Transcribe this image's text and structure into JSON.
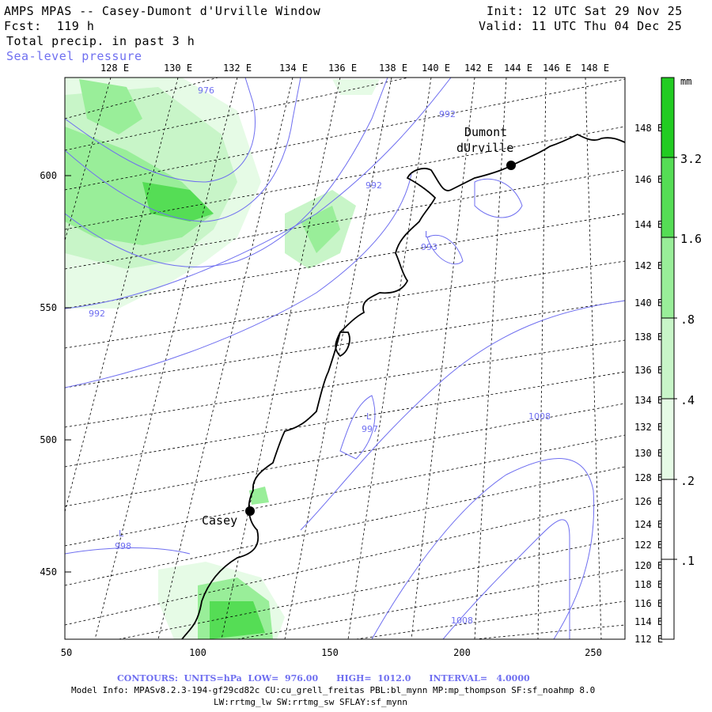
{
  "header": {
    "title": "AMPS MPAS -- Casey-Dumont d'Urville Window",
    "forecast": "Fcst:  119 h",
    "field": "Total precip. in past 3 h",
    "overlay": "Sea-level pressure",
    "init": "Init: 12 UTC Sat 29 Nov 25",
    "valid": "Valid: 11 UTC Thu 04 Dec 25"
  },
  "top_longitudes": [
    "128 E",
    "130 E",
    "132 E",
    "134 E",
    "136 E",
    "138 E",
    "140 E",
    "142 E",
    "144 E",
    "146 E",
    "148 E"
  ],
  "right_longitudes": [
    "148 E",
    "146 E",
    "144 E",
    "142 E",
    "140 E",
    "138 E",
    "136 E",
    "134 E",
    "132 E",
    "130 E",
    "128 E",
    "126 E",
    "124 E",
    "122 E",
    "120 E",
    "118 E",
    "116 E",
    "114 E",
    "112 E"
  ],
  "left_ticks": [
    "600",
    "550",
    "500",
    "450"
  ],
  "bottom_ticks": [
    "50",
    "100",
    "150",
    "200",
    "250"
  ],
  "colorbar": {
    "unit": "mm",
    "levels": [
      "3.2",
      "1.6",
      ".8",
      ".4",
      ".2",
      ".1"
    ],
    "colors": [
      "#22cc22",
      "#55dd55",
      "#99ee99",
      "#c8f5c8",
      "#e6fbe6",
      "#ffffff"
    ]
  },
  "stations": [
    {
      "name_line1": "Dumont",
      "name_line2": "dUrville"
    },
    {
      "name_line1": "Casey",
      "name_line2": ""
    }
  ],
  "isobar_labels": [
    "976",
    "992",
    "992",
    "992",
    "993",
    "997",
    "998",
    "1008",
    "1008"
  ],
  "low_labels": [
    "L",
    "L",
    "L"
  ],
  "footer": {
    "contours": "CONTOURS:  UNITS=hPa  LOW=  976.00      HIGH=  1012.0      INTERVAL=   4.0000",
    "model_info": "Model Info: MPASv8.2.3-194-gf29cd82c CU:cu_grell_freitas PBL:bl_mynn MP:mp_thompson SF:sf_noahmp 8.0",
    "model_info2": "LW:rrtmg_lw SW:rrtmg_sw SFLAY:sf_mynn"
  },
  "colors": {
    "isobar": "#6f6ff0",
    "coast": "#000000",
    "precip_light": "#e6fbe6",
    "precip_med": "#99ee99",
    "precip_dark": "#55dd55"
  }
}
